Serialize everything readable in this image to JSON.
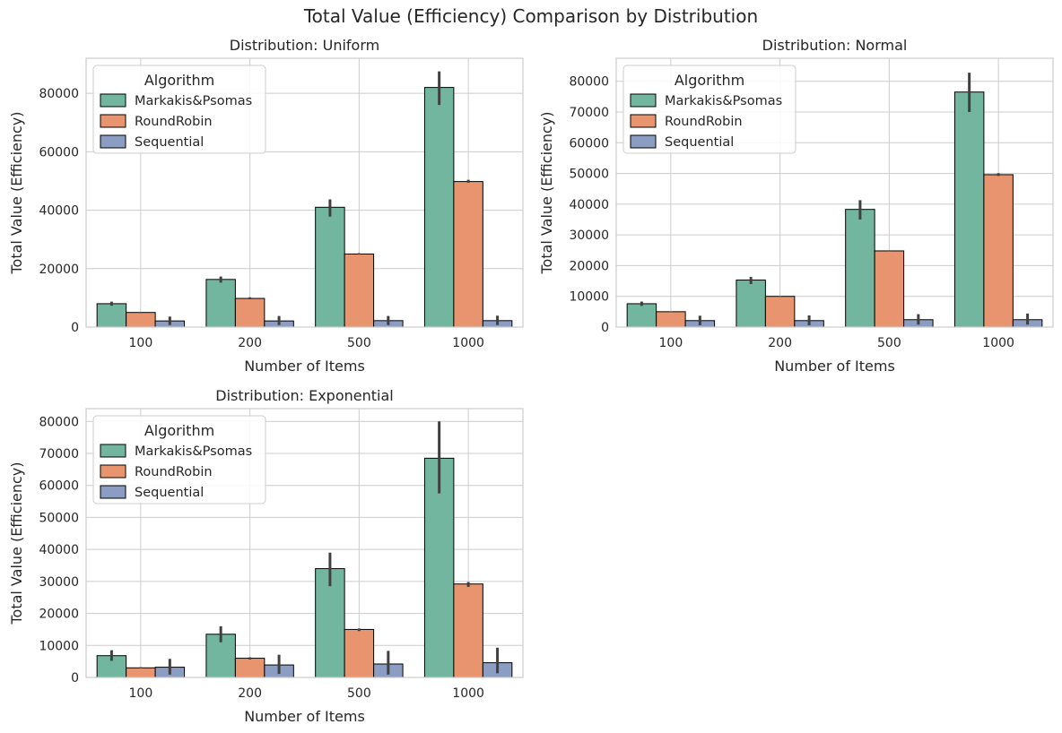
{
  "figure": {
    "title": "Total Value (Efficiency) Comparison by Distribution"
  },
  "colors": {
    "Markakis&Psomas": "#72b6a0",
    "RoundRobin": "#e8956f",
    "Sequential": "#8b9dc2",
    "grid": "#cccccc",
    "errorbar": "#404040",
    "spine": "#cccccc"
  },
  "chart_data": [
    {
      "type": "bar",
      "title": "Distribution: Uniform",
      "xlabel": "Number of Items",
      "ylabel": "Total Value (Efficiency)",
      "categories": [
        "100",
        "200",
        "500",
        "1000"
      ],
      "ylim": [
        0,
        92000
      ],
      "yticks": [
        0,
        20000,
        40000,
        60000,
        80000
      ],
      "grid": true,
      "legend": {
        "title": "Algorithm",
        "placement": "top-left"
      },
      "series": [
        {
          "name": "Markakis&Psomas",
          "values": [
            8000,
            16300,
            41000,
            82000
          ],
          "err_low": [
            7300,
            15200,
            37800,
            76000
          ],
          "err_high": [
            8700,
            17300,
            43700,
            87500
          ]
        },
        {
          "name": "RoundRobin",
          "values": [
            5000,
            9800,
            25000,
            49800
          ],
          "err_low": [
            4800,
            9500,
            24800,
            49400
          ],
          "err_high": [
            5200,
            10200,
            25300,
            50400
          ]
        },
        {
          "name": "Sequential",
          "values": [
            2100,
            2100,
            2200,
            2200
          ],
          "err_low": [
            700,
            700,
            700,
            700
          ],
          "err_high": [
            3600,
            3800,
            3800,
            3900
          ]
        }
      ]
    },
    {
      "type": "bar",
      "title": "Distribution: Normal",
      "xlabel": "Number of Items",
      "ylabel": "Total Value (Efficiency)",
      "categories": [
        "100",
        "200",
        "500",
        "1000"
      ],
      "ylim": [
        0,
        87500
      ],
      "yticks": [
        0,
        10000,
        20000,
        30000,
        40000,
        50000,
        60000,
        70000,
        80000
      ],
      "grid": true,
      "legend": {
        "title": "Algorithm",
        "placement": "top-left"
      },
      "series": [
        {
          "name": "Markakis&Psomas",
          "values": [
            7600,
            15300,
            38300,
            76500
          ],
          "err_low": [
            6900,
            14000,
            35000,
            70000
          ],
          "err_high": [
            8300,
            16300,
            41300,
            82800
          ]
        },
        {
          "name": "RoundRobin",
          "values": [
            5000,
            10000,
            24800,
            49600
          ],
          "err_low": [
            4900,
            9900,
            24600,
            49200
          ],
          "err_high": [
            5100,
            10100,
            25000,
            50100
          ]
        },
        {
          "name": "Sequential",
          "values": [
            2100,
            2100,
            2400,
            2400
          ],
          "err_low": [
            600,
            600,
            800,
            800
          ],
          "err_high": [
            3700,
            3800,
            4200,
            4400
          ]
        }
      ]
    },
    {
      "type": "bar",
      "title": "Distribution: Exponential",
      "xlabel": "Number of Items",
      "ylabel": "Total Value (Efficiency)",
      "categories": [
        "100",
        "200",
        "500",
        "1000"
      ],
      "ylim": [
        0,
        84000
      ],
      "yticks": [
        0,
        10000,
        20000,
        30000,
        40000,
        50000,
        60000,
        70000,
        80000
      ],
      "grid": true,
      "legend": {
        "title": "Algorithm",
        "placement": "top-left"
      },
      "series": [
        {
          "name": "Markakis&Psomas",
          "values": [
            6800,
            13500,
            34000,
            68500
          ],
          "err_low": [
            5200,
            11000,
            28500,
            57500
          ],
          "err_high": [
            8500,
            16000,
            39000,
            80000
          ]
        },
        {
          "name": "RoundRobin",
          "values": [
            3000,
            6000,
            15000,
            29200
          ],
          "err_low": [
            2800,
            5600,
            14500,
            28300
          ],
          "err_high": [
            3200,
            6300,
            15300,
            29800
          ]
        },
        {
          "name": "Sequential",
          "values": [
            3200,
            3900,
            4200,
            4600
          ],
          "err_low": [
            900,
            1100,
            900,
            1300
          ],
          "err_high": [
            5800,
            7100,
            8300,
            9300
          ]
        }
      ]
    }
  ]
}
